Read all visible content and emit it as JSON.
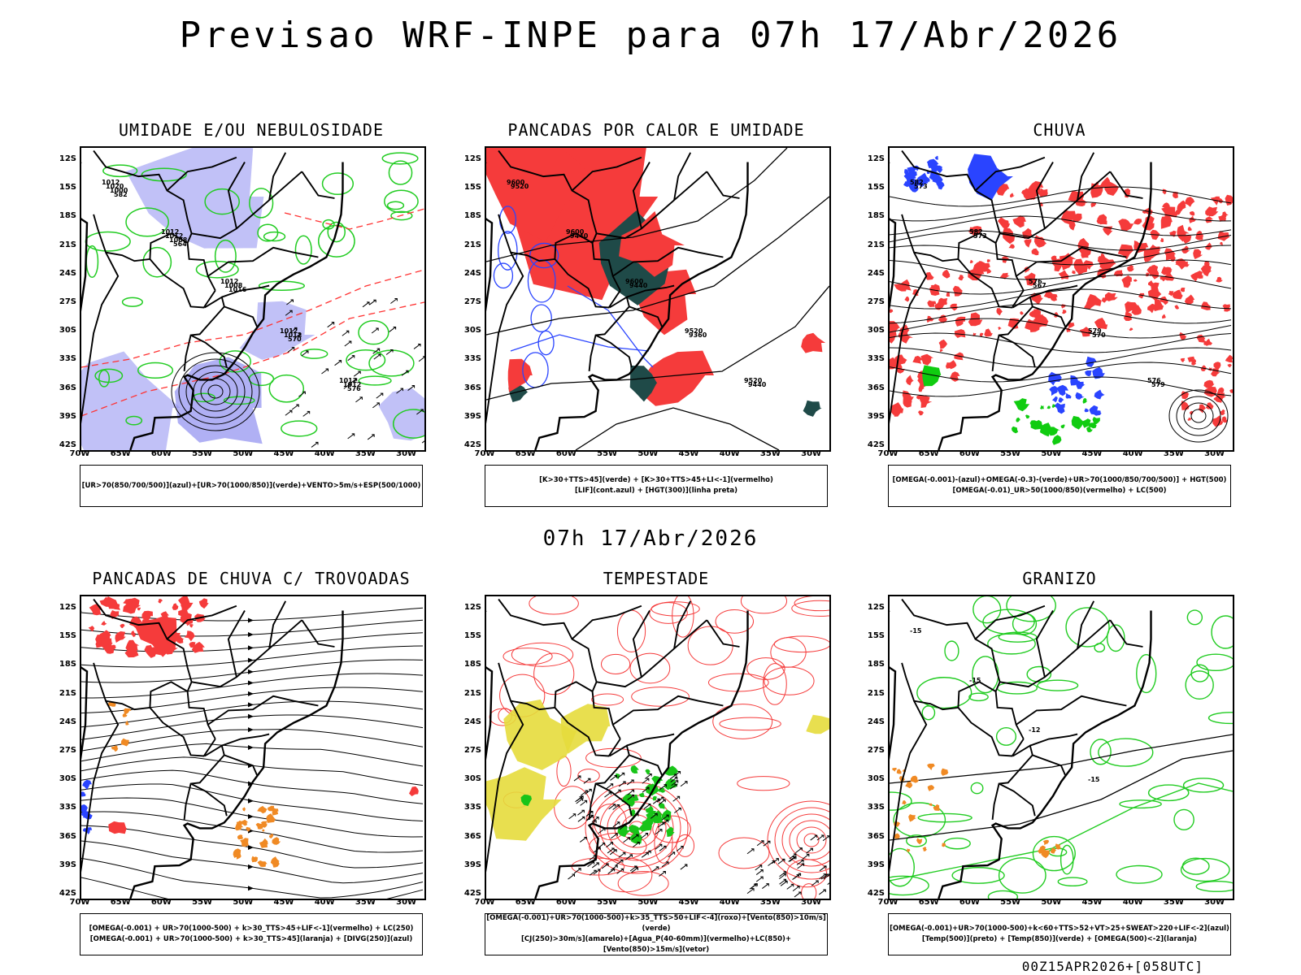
{
  "title": "Previsao WRF-INPE  para 07h 17/Abr/2026",
  "mid_title": "07h 17/Abr/2026",
  "footer": "00Z15APR2026+[058UTC]",
  "chart_data": [
    {
      "type": "map",
      "title": "UMIDADE E/OU NEBULOSIDADE",
      "legend": [
        "[UR>70(850/700/500)](azul)+[UR>70(1000/850)](verde)+VENTO>5m/s+ESP(500/1000)"
      ],
      "yticks": [
        "12S",
        "15S",
        "18S",
        "21S",
        "24S",
        "27S",
        "30S",
        "33S",
        "36S",
        "39S",
        "42S"
      ],
      "xticks": [
        "70W",
        "65W",
        "60W",
        "55W",
        "50W",
        "45W",
        "40W",
        "35W",
        "30W"
      ],
      "contour_labels": [
        "1012",
        "1012",
        "1012",
        "1012",
        "1012",
        "1020",
        "1012",
        "1008",
        "1012",
        "1012",
        "1000",
        "1008",
        "1016",
        "570",
        "576",
        "582",
        "564"
      ],
      "colors": {
        "layer1": "#8e8ef0",
        "layer2": "#22cc22",
        "contour": "#ff3333"
      }
    },
    {
      "type": "map",
      "title": "PANCADAS POR CALOR E UMIDADE",
      "legend": [
        "[K>30+TTS>45](verde) + [K>30+TTS>45+LI<-1](vermelho)",
        "[LIF](cont.azul) + [HGT(300)](linha preta)"
      ],
      "yticks": [
        "12S",
        "15S",
        "18S",
        "21S",
        "24S",
        "27S",
        "30S",
        "33S",
        "36S",
        "39S",
        "42S"
      ],
      "xticks": [
        "70W",
        "65W",
        "60W",
        "55W",
        "50W",
        "45W",
        "40W",
        "35W",
        "30W"
      ],
      "contour_labels": [
        "9600",
        "9600",
        "9600",
        "9520",
        "9520",
        "9520",
        "9440",
        "9440",
        "9360",
        "9440"
      ],
      "colors": {
        "layer1": "#1f4a48",
        "layer2": "#f53b3b",
        "contour": "#2a44ff"
      }
    },
    {
      "type": "map",
      "title": "CHUVA",
      "legend": [
        "[OMEGA(-0.001)-(azul)+OMEGA(-0.3)-(verde)+UR>70(1000/850/700/500)] + HGT(500)",
        "[OMEGA(-0.01)_UR>50(1000/850)(vermelho) + LC(500)"
      ],
      "yticks": [
        "12S",
        "15S",
        "18S",
        "21S",
        "24S",
        "27S",
        "30S",
        "33S",
        "36S",
        "39S",
        "42S"
      ],
      "xticks": [
        "70W",
        "65W",
        "60W",
        "55W",
        "50W",
        "45W",
        "40W",
        "35W",
        "30W"
      ],
      "contour_labels": [
        "582",
        "582",
        "576",
        "579",
        "576",
        "573",
        "573",
        "567",
        "570",
        "579"
      ],
      "colors": {
        "layer1": "#2a44ff",
        "layer2": "#f53b3b",
        "layer3": "#10cc10",
        "contour": "#000000"
      }
    },
    {
      "type": "map",
      "title": "PANCADAS DE CHUVA C/ TROVOADAS",
      "legend": [
        "[OMEGA(-0.001) + UR>70(1000-500) + k>30_TTS>45+LIF<-1](vermelho) + LC(250)",
        "[OMEGA(-0.001) + UR>70(1000-500) + k>30_TTS>45](laranja) + [DIVG(250)](azul)"
      ],
      "yticks": [
        "12S",
        "15S",
        "18S",
        "21S",
        "24S",
        "27S",
        "30S",
        "33S",
        "36S",
        "39S",
        "42S"
      ],
      "xticks": [
        "70W",
        "65W",
        "60W",
        "55W",
        "50W",
        "45W",
        "40W",
        "35W",
        "30W"
      ],
      "contour_labels": [],
      "colors": {
        "layer1": "#f53b3b",
        "layer2": "#f08a24",
        "layer3": "#2a44ff",
        "contour": "#000000"
      }
    },
    {
      "type": "map",
      "title": "TEMPESTADE",
      "legend": [
        "[OMEGA(-0.001)+UR>70(1000-500)+k>35_TTS>50+LIF<-4](roxo)+[Vento(850)>10m/s](verde)",
        "[CJ(250)>30m/s](amarelo)+[Agua_P(40-60mm)](vermelho)+LC(850)+[Vento(850)>15m/s](vetor)"
      ],
      "yticks": [
        "12S",
        "15S",
        "18S",
        "21S",
        "24S",
        "27S",
        "30S",
        "33S",
        "36S",
        "39S",
        "42S"
      ],
      "xticks": [
        "70W",
        "65W",
        "60W",
        "55W",
        "50W",
        "45W",
        "40W",
        "35W",
        "30W"
      ],
      "contour_labels": [],
      "colors": {
        "layer1": "#e6dc3c",
        "layer2": "#18c418",
        "contour": "#f53b3b"
      }
    },
    {
      "type": "map",
      "title": "GRANIZO",
      "legend": [
        "[OMEGA(-0.001)+UR>70(1000-500)+k<60+TTS>52+VT>25+SWEAT>220+LIF<-2](azul)",
        "[Temp(500)](preto) + [Temp(850)](verde) + [OMEGA(500)<-2](laranja)"
      ],
      "yticks": [
        "12S",
        "15S",
        "18S",
        "21S",
        "24S",
        "27S",
        "30S",
        "33S",
        "36S",
        "39S",
        "42S"
      ],
      "xticks": [
        "70W",
        "65W",
        "60W",
        "55W",
        "50W",
        "45W",
        "40W",
        "35W",
        "30W"
      ],
      "contour_labels": [
        "-15",
        "-15",
        "-12",
        "-15"
      ],
      "colors": {
        "layer1": "#f08a24",
        "contour": "#22cc22"
      }
    }
  ]
}
